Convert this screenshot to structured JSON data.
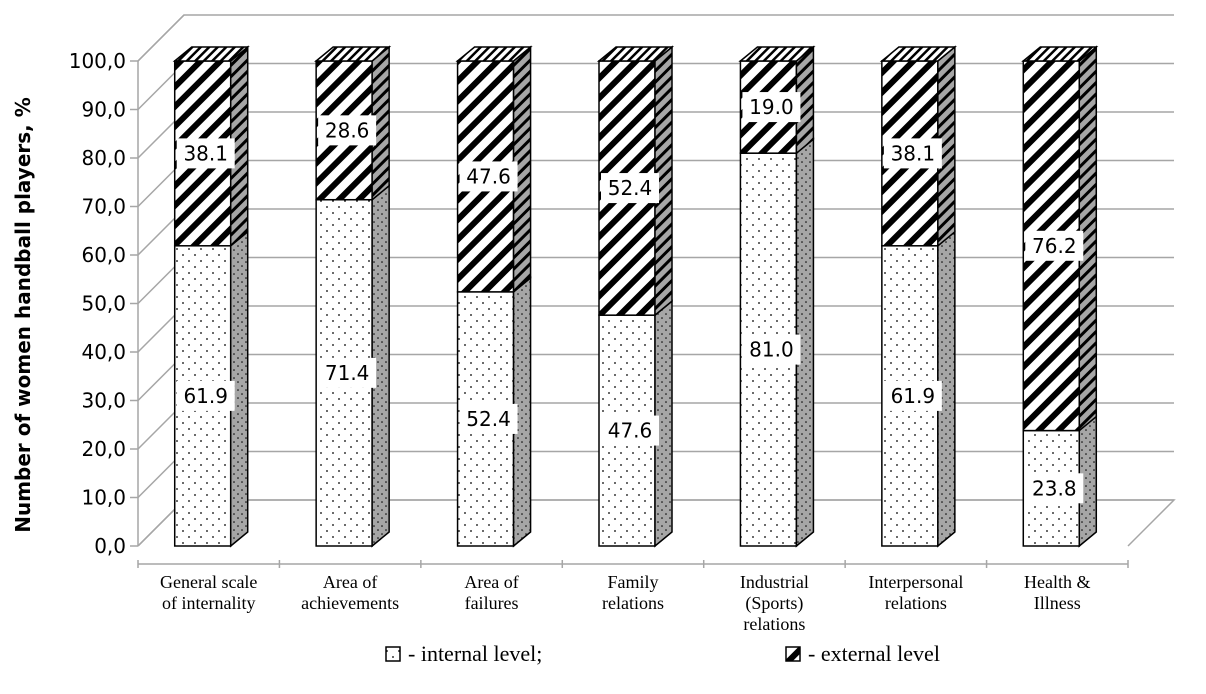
{
  "chart_data": {
    "type": "bar",
    "stacked": true,
    "three_d": true,
    "ylabel": "Number of women handball players, %",
    "xlabel": "",
    "ylim": [
      0,
      100
    ],
    "y_ticks": [
      "0,0",
      "10,0",
      "20,0",
      "30,0",
      "40,0",
      "50,0",
      "60,0",
      "70,0",
      "80,0",
      "90,0",
      "100,0"
    ],
    "grid": true,
    "categories": [
      [
        "General scale",
        "of internality"
      ],
      [
        "Area of",
        "achievements"
      ],
      [
        "Area of",
        "failures"
      ],
      [
        "Family",
        "relations"
      ],
      [
        "Industrial",
        "(Sports)",
        "relations"
      ],
      [
        "Interpersonal",
        "relations"
      ],
      [
        "Health &",
        "Illness"
      ]
    ],
    "series": [
      {
        "name": "- internal level;",
        "pattern": "dots",
        "values": [
          61.9,
          71.4,
          52.4,
          47.6,
          81.0,
          61.9,
          23.8
        ],
        "labels": [
          "61.9",
          "71.4",
          "52.4",
          "47.6",
          "81.0",
          "61.9",
          "23.8"
        ]
      },
      {
        "name": "- external level",
        "pattern": "diagonal-stripes",
        "values": [
          38.1,
          28.6,
          47.6,
          52.4,
          19.0,
          38.1,
          76.2
        ],
        "labels": [
          "38.1",
          "28.6",
          "47.6",
          "52.4",
          "19.0",
          "38.1",
          "76.2"
        ]
      }
    ],
    "legend_position": "bottom",
    "colors": {
      "grid": "#a6a6a6",
      "bar_outline": "#000000",
      "side_fill": "#a6a6a6"
    }
  }
}
